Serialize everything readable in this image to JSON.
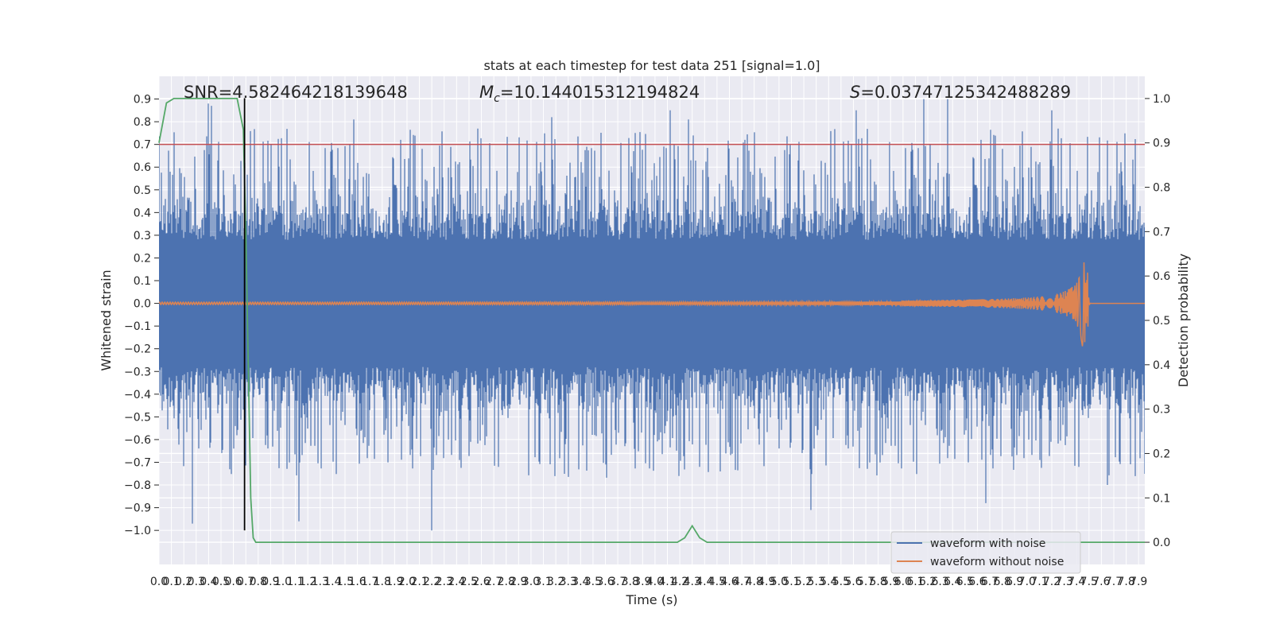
{
  "chart_data": {
    "type": "line",
    "title": "stats at each timestep for test data 251 [signal=1.0]",
    "xlabel": "Time (s)",
    "ylabel": "Whitened strain",
    "y2label": "Detection probability",
    "xlim": [
      0.0,
      7.95
    ],
    "ylim": [
      -1.15,
      1.0
    ],
    "y2lim": [
      -0.05,
      1.05
    ],
    "x_ticks": [
      0.0,
      0.1,
      0.2,
      0.3,
      0.4,
      0.5,
      0.6,
      0.7,
      0.8,
      0.9,
      1.0,
      1.1,
      1.2,
      1.3,
      1.4,
      1.5,
      1.6,
      1.7,
      1.8,
      1.9,
      2.0,
      2.1,
      2.2,
      2.3,
      2.4,
      2.5,
      2.6,
      2.7,
      2.8,
      2.9,
      3.0,
      3.1,
      3.2,
      3.3,
      3.4,
      3.5,
      3.6,
      3.7,
      3.8,
      3.9,
      4.0,
      4.1,
      4.2,
      4.3,
      4.4,
      4.5,
      4.6,
      4.7,
      4.8,
      4.9,
      5.0,
      5.1,
      5.2,
      5.3,
      5.4,
      5.5,
      5.6,
      5.7,
      5.8,
      5.9,
      6.0,
      6.1,
      6.2,
      6.3,
      6.4,
      6.5,
      6.6,
      6.7,
      6.8,
      6.9,
      7.0,
      7.1,
      7.2,
      7.3,
      7.4,
      7.5,
      7.6,
      7.7,
      7.8,
      7.9
    ],
    "y_ticks": [
      0.9,
      0.8,
      0.7,
      0.6,
      0.5,
      0.4,
      0.3,
      0.2,
      0.1,
      0.0,
      -0.1,
      -0.2,
      -0.3,
      -0.4,
      -0.5,
      -0.6,
      -0.7,
      -0.8,
      -0.9,
      -1.0
    ],
    "y2_ticks": [
      1.0,
      0.9,
      0.8,
      0.7,
      0.6,
      0.5,
      0.4,
      0.3,
      0.2,
      0.1,
      0.0
    ],
    "annotations": {
      "snr": "SNR=4.582464218139648",
      "mc": "=10.144015312194824",
      "s": "=0.03747125342488289"
    },
    "threshold_y": 0.7,
    "marker_x": 0.69,
    "grid": true,
    "legend_position": "lower-right",
    "series": [
      {
        "name": "waveform with noise",
        "color": "#4c72b0",
        "axis": "left",
        "description_values": "dense noise, peaks mostly within [-0.85, 0.9]",
        "notable_peaks": [
          {
            "x": 0.27,
            "y": -0.97
          },
          {
            "x": 0.4,
            "y": 0.88
          },
          {
            "x": 0.42,
            "y": 0.87
          },
          {
            "x": 1.13,
            "y": -0.96
          },
          {
            "x": 1.57,
            "y": 0.81
          },
          {
            "x": 2.2,
            "y": -1.0
          },
          {
            "x": 3.17,
            "y": 0.82
          },
          {
            "x": 4.12,
            "y": 0.85
          },
          {
            "x": 4.27,
            "y": 0.81
          },
          {
            "x": 5.26,
            "y": -0.91
          },
          {
            "x": 5.62,
            "y": 0.85
          },
          {
            "x": 6.17,
            "y": 0.9
          },
          {
            "x": 6.36,
            "y": 0.9
          },
          {
            "x": 6.67,
            "y": -0.88
          },
          {
            "x": 7.65,
            "y": -0.8
          },
          {
            "x": 7.2,
            "y": 0.85
          }
        ]
      },
      {
        "name": "waveform without noise",
        "color": "#dd8452",
        "axis": "left",
        "description_values": "chirp: amplitude grows from ~0.005 to ~0.19 peak at merger t≈7.49 s, then ringdown",
        "merger_time": 7.49,
        "peak_positive": 0.19,
        "peak_negative": -0.17
      },
      {
        "name": "",
        "color": "#55a868",
        "axis": "right",
        "points": [
          [
            0.0,
            0.9
          ],
          [
            0.06,
            0.99
          ],
          [
            0.12,
            1.0
          ],
          [
            0.3,
            1.0
          ],
          [
            0.4,
            1.0
          ],
          [
            0.63,
            1.0
          ],
          [
            0.68,
            0.93
          ],
          [
            0.7,
            0.7
          ],
          [
            0.72,
            0.4
          ],
          [
            0.74,
            0.1
          ],
          [
            0.76,
            0.01
          ],
          [
            0.78,
            0.0
          ],
          [
            4.18,
            0.0
          ],
          [
            4.24,
            0.01
          ],
          [
            4.3,
            0.037
          ],
          [
            4.36,
            0.01
          ],
          [
            4.42,
            0.0
          ],
          [
            7.95,
            0.0
          ]
        ]
      }
    ]
  },
  "colors": {
    "plot_background": "#eaeaf2",
    "grid": "#ffffff",
    "threshold_line": "#c44e52",
    "marker_line": "#000000"
  }
}
